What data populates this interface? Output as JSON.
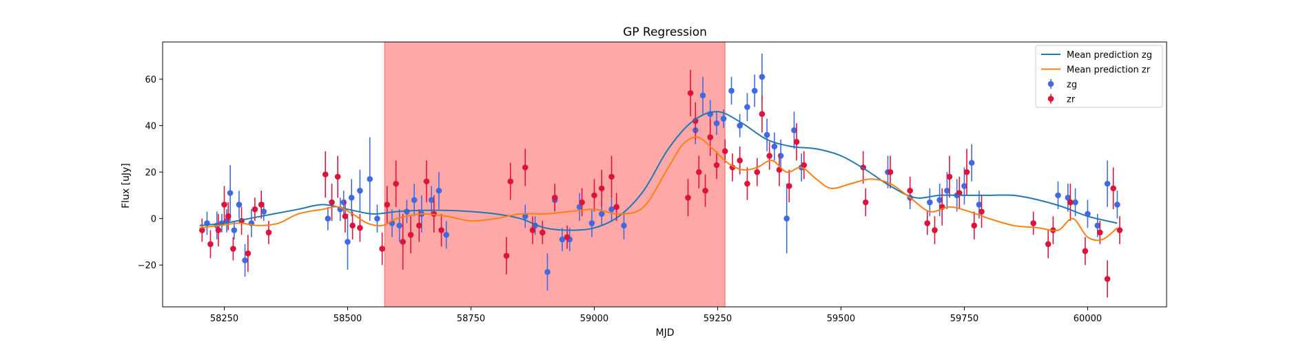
{
  "chart_data": {
    "type": "scatter",
    "title": "GP Regression",
    "xlabel": "MJD",
    "ylabel": "Flux [uJy]",
    "xlim": [
      58125,
      60160
    ],
    "ylim": [
      -38,
      76
    ],
    "x_ticks": [
      58250,
      58500,
      58750,
      59000,
      59250,
      59500,
      59750,
      60000
    ],
    "y_ticks": [
      -20,
      0,
      20,
      40,
      60
    ],
    "grid": false,
    "legend_position": "top-right",
    "highlight_region": {
      "x_start": 58575,
      "x_end": 59265,
      "color": "#ff0000",
      "opacity": 0.34
    },
    "colors": {
      "zg_line": "#1f77b4",
      "zr_line": "#ff7f0e",
      "zg_points": "#4169e1",
      "zr_points": "#dc143c"
    },
    "legend": [
      {
        "label": "Mean prediction zg",
        "kind": "line",
        "color": "#1f77b4"
      },
      {
        "label": "Mean prediction zr",
        "kind": "line",
        "color": "#ff7f0e"
      },
      {
        "label": "zg",
        "kind": "errorbar",
        "color": "#4169e1"
      },
      {
        "label": "zr",
        "kind": "errorbar",
        "color": "#dc143c"
      }
    ],
    "series": [
      {
        "name": "Mean prediction zg",
        "kind": "line",
        "x": [
          58200,
          58250,
          58300,
          58350,
          58400,
          58450,
          58500,
          58550,
          58600,
          58650,
          58700,
          58750,
          58800,
          58850,
          58900,
          58950,
          59000,
          59050,
          59100,
          59150,
          59200,
          59250,
          59300,
          59350,
          59400,
          59450,
          59500,
          59550,
          59600,
          59650,
          59700,
          59750,
          59800,
          59850,
          59900,
          59950,
          60000,
          60060
        ],
        "y": [
          -3,
          -2,
          0,
          2,
          4,
          6,
          4,
          2,
          3,
          3.5,
          3.5,
          3,
          2,
          0,
          -4,
          -5,
          -4,
          1,
          12,
          30,
          42,
          46,
          41,
          34,
          31,
          30,
          27,
          21,
          14,
          9,
          10,
          10,
          10,
          10,
          8,
          5,
          1,
          -2
        ]
      },
      {
        "name": "Mean prediction zr",
        "kind": "line",
        "x": [
          58200,
          58240,
          58280,
          58320,
          58360,
          58400,
          58450,
          58480,
          58510,
          58540,
          58570,
          58600,
          58650,
          58700,
          58750,
          58800,
          58850,
          58900,
          58950,
          59000,
          59050,
          59100,
          59150,
          59180,
          59210,
          59240,
          59270,
          59300,
          59330,
          59360,
          59390,
          59420,
          59450,
          59480,
          59520,
          59560,
          59600,
          59640,
          59680,
          59720,
          59760,
          59800,
          59850,
          59900,
          59940,
          59970,
          60000,
          60030,
          60060
        ],
        "y": [
          -4,
          -3,
          -2,
          -3,
          -2,
          2,
          4,
          5,
          2,
          -2,
          -3,
          0,
          2,
          1,
          -1,
          0,
          2,
          2,
          3,
          4,
          2,
          5,
          22,
          32,
          35,
          30,
          24,
          21,
          22,
          25,
          20,
          22,
          17,
          13,
          15,
          17,
          15,
          9,
          3,
          5,
          3,
          0,
          -3,
          -4,
          -5,
          0,
          -8,
          -9,
          -4
        ]
      },
      {
        "name": "zg",
        "kind": "errorbar",
        "points": [
          [
            58215,
            -2,
            5
          ],
          [
            58235,
            -3,
            6
          ],
          [
            58245,
            -2,
            4
          ],
          [
            58255,
            -1,
            5
          ],
          [
            58262,
            11,
            12
          ],
          [
            58270,
            -5,
            4
          ],
          [
            58280,
            6,
            6
          ],
          [
            58292,
            -18,
            7
          ],
          [
            58305,
            -2,
            6
          ],
          [
            58330,
            3,
            4
          ],
          [
            58460,
            0,
            5
          ],
          [
            58485,
            4,
            5
          ],
          [
            58492,
            7,
            5
          ],
          [
            58500,
            -10,
            12
          ],
          [
            58508,
            9,
            8
          ],
          [
            58525,
            12,
            9
          ],
          [
            58545,
            17,
            18
          ],
          [
            58560,
            0,
            6
          ],
          [
            58590,
            -2,
            6
          ],
          [
            58605,
            -3,
            7
          ],
          [
            58620,
            3,
            5
          ],
          [
            58635,
            8,
            7
          ],
          [
            58650,
            2,
            8
          ],
          [
            58670,
            8,
            6
          ],
          [
            58685,
            12,
            8
          ],
          [
            58700,
            -7,
            6
          ],
          [
            58860,
            1,
            5
          ],
          [
            58880,
            -3,
            4
          ],
          [
            58905,
            -23,
            8
          ],
          [
            58920,
            8,
            5
          ],
          [
            58935,
            -9,
            5
          ],
          [
            58950,
            -9,
            5
          ],
          [
            58970,
            5,
            6
          ],
          [
            58995,
            -2,
            6
          ],
          [
            59015,
            2,
            5
          ],
          [
            59035,
            4,
            5
          ],
          [
            59060,
            -3,
            6
          ],
          [
            59205,
            38,
            6
          ],
          [
            59220,
            53,
            8
          ],
          [
            59235,
            45,
            6
          ],
          [
            59248,
            41,
            5
          ],
          [
            59262,
            43,
            4
          ],
          [
            59278,
            55,
            6
          ],
          [
            59295,
            40,
            5
          ],
          [
            59310,
            48,
            6
          ],
          [
            59325,
            55,
            7
          ],
          [
            59340,
            61,
            10
          ],
          [
            59350,
            36,
            7
          ],
          [
            59365,
            31,
            6
          ],
          [
            59378,
            27,
            7
          ],
          [
            59390,
            0,
            15
          ],
          [
            59405,
            38,
            8
          ],
          [
            59420,
            22,
            6
          ],
          [
            59595,
            20,
            7
          ],
          [
            59640,
            9,
            5
          ],
          [
            59680,
            7,
            6
          ],
          [
            59700,
            8,
            7
          ],
          [
            59715,
            12,
            8
          ],
          [
            59735,
            10,
            7
          ],
          [
            59750,
            14,
            8
          ],
          [
            59765,
            24,
            8
          ],
          [
            59780,
            6,
            6
          ],
          [
            59940,
            10,
            6
          ],
          [
            59960,
            9,
            6
          ],
          [
            59975,
            7,
            6
          ],
          [
            60000,
            2,
            6
          ],
          [
            60020,
            -3,
            5
          ],
          [
            60040,
            15,
            10
          ],
          [
            60060,
            6,
            6
          ]
        ]
      },
      {
        "name": "zr",
        "kind": "errorbar",
        "points": [
          [
            58205,
            -5,
            5
          ],
          [
            58222,
            -11,
            6
          ],
          [
            58238,
            -5,
            7
          ],
          [
            58250,
            6,
            8
          ],
          [
            58258,
            1,
            6
          ],
          [
            58268,
            -13,
            5
          ],
          [
            58285,
            -1,
            6
          ],
          [
            58298,
            -15,
            8
          ],
          [
            58312,
            4,
            5
          ],
          [
            58325,
            6,
            6
          ],
          [
            58340,
            -6,
            5
          ],
          [
            58455,
            19,
            10
          ],
          [
            58468,
            7,
            8
          ],
          [
            58480,
            18,
            9
          ],
          [
            58495,
            1,
            7
          ],
          [
            58510,
            -3,
            6
          ],
          [
            58525,
            -4,
            6
          ],
          [
            58570,
            -13,
            7
          ],
          [
            58580,
            6,
            8
          ],
          [
            58598,
            15,
            10
          ],
          [
            58612,
            -10,
            12
          ],
          [
            58628,
            -7,
            8
          ],
          [
            58645,
            -3,
            7
          ],
          [
            58660,
            16,
            9
          ],
          [
            58675,
            2,
            8
          ],
          [
            58690,
            -5,
            7
          ],
          [
            58822,
            -16,
            8
          ],
          [
            58830,
            16,
            8
          ],
          [
            58860,
            22,
            8
          ],
          [
            58875,
            -5,
            6
          ],
          [
            58895,
            -6,
            5
          ],
          [
            58920,
            9,
            6
          ],
          [
            58945,
            -8,
            5
          ],
          [
            58975,
            7,
            6
          ],
          [
            59000,
            10,
            7
          ],
          [
            59015,
            13,
            8
          ],
          [
            59035,
            18,
            9
          ],
          [
            59045,
            5,
            6
          ],
          [
            59190,
            9,
            8
          ],
          [
            59195,
            54,
            10
          ],
          [
            59205,
            42,
            8
          ],
          [
            59212,
            20,
            7
          ],
          [
            59225,
            12,
            7
          ],
          [
            59235,
            35,
            8
          ],
          [
            59248,
            23,
            6
          ],
          [
            59265,
            29,
            5
          ],
          [
            59280,
            22,
            6
          ],
          [
            59295,
            25,
            6
          ],
          [
            59310,
            15,
            7
          ],
          [
            59330,
            20,
            6
          ],
          [
            59340,
            45,
            8
          ],
          [
            59355,
            27,
            6
          ],
          [
            59375,
            21,
            7
          ],
          [
            59395,
            14,
            7
          ],
          [
            59410,
            33,
            8
          ],
          [
            59425,
            23,
            6
          ],
          [
            59545,
            22,
            7
          ],
          [
            59550,
            7,
            6
          ],
          [
            59600,
            20,
            7
          ],
          [
            59640,
            12,
            6
          ],
          [
            59675,
            -2,
            5
          ],
          [
            59690,
            -5,
            6
          ],
          [
            59705,
            5,
            8
          ],
          [
            59720,
            18,
            9
          ],
          [
            59740,
            11,
            7
          ],
          [
            59755,
            20,
            10
          ],
          [
            59770,
            -3,
            6
          ],
          [
            59785,
            3,
            7
          ],
          [
            59890,
            -2,
            5
          ],
          [
            59920,
            -11,
            6
          ],
          [
            59930,
            -5,
            6
          ],
          [
            59965,
            7,
            8
          ],
          [
            59995,
            -14,
            6
          ],
          [
            60025,
            -6,
            5
          ],
          [
            60040,
            -26,
            8
          ],
          [
            60052,
            13,
            9
          ],
          [
            60065,
            -5,
            6
          ]
        ]
      }
    ]
  }
}
